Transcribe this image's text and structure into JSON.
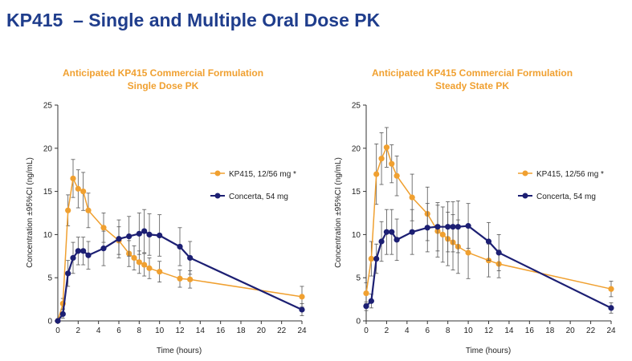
{
  "slide": {
    "title": "KP415  – Single and Multiple Oral Dose PK"
  },
  "colors": {
    "kp415": "#f0a030",
    "concerta": "#1c1f73",
    "title": "#1f3d8c",
    "error_bar": "#555555"
  },
  "chart_data": [
    {
      "type": "line",
      "title": "Anticipated KP415 Commercial Formulation",
      "subtitle": "Single Dose PK",
      "xlabel": "Time (hours)",
      "ylabel": "Concentration ±95%CI (ng/mL)",
      "xlim": [
        0,
        24
      ],
      "ylim": [
        0,
        25
      ],
      "xticks": [
        "0",
        "2",
        "4",
        "6",
        "8",
        "10",
        "12",
        "14",
        "16",
        "18",
        "20",
        "22",
        "24"
      ],
      "yticks": [
        "0",
        "5",
        "10",
        "15",
        "20",
        "25"
      ],
      "legend_position": "right",
      "error_bars": true,
      "series": [
        {
          "name": "KP415, 12/56 mg *",
          "color": "#f0a030",
          "x": [
            0,
            0.5,
            1,
            1.5,
            2,
            2.5,
            3,
            4.5,
            6,
            7,
            7.5,
            8,
            8.5,
            9,
            10,
            12,
            13,
            24
          ],
          "y": [
            0,
            2,
            12.8,
            16.5,
            15.3,
            15,
            12.8,
            10.8,
            9.3,
            7.8,
            7.3,
            6.8,
            6.5,
            6.1,
            5.7,
            4.9,
            4.8,
            2.8
          ],
          "err": [
            0,
            0.6,
            1.8,
            2.2,
            2.2,
            2.2,
            2,
            1.7,
            1.6,
            1.5,
            1.4,
            1.3,
            1.3,
            1.2,
            1.2,
            1,
            1,
            1.2
          ]
        },
        {
          "name": "Concerta, 54 mg",
          "color": "#1c1f73",
          "x": [
            0,
            0.5,
            1,
            1.5,
            2,
            2.5,
            3,
            4.5,
            6,
            7,
            8,
            8.5,
            9,
            10,
            12,
            13,
            24
          ],
          "y": [
            0,
            0.8,
            5.5,
            7.3,
            8.1,
            8.1,
            7.6,
            8.4,
            9.5,
            9.8,
            10.1,
            10.4,
            10,
            9.9,
            8.6,
            7.3,
            1.3
          ],
          "err": [
            0,
            0.5,
            1.5,
            1.8,
            1.6,
            1.6,
            1.6,
            2,
            2.2,
            2.3,
            2.4,
            2.5,
            2.4,
            2.4,
            2.2,
            1.9,
            0.7
          ]
        }
      ]
    },
    {
      "type": "line",
      "title": "Anticipated KP415 Commercial Formulation",
      "subtitle": "Steady State PK",
      "xlabel": "Time (hours)",
      "ylabel": "Concentration ±95%CI (ng/mL)",
      "xlim": [
        0,
        24
      ],
      "ylim": [
        0,
        25
      ],
      "xticks": [
        "0",
        "2",
        "4",
        "6",
        "8",
        "10",
        "12",
        "14",
        "16",
        "18",
        "20",
        "22",
        "24"
      ],
      "yticks": [
        "0",
        "5",
        "10",
        "15",
        "20",
        "25"
      ],
      "legend_position": "right",
      "error_bars": true,
      "series": [
        {
          "name": "KP415, 12/56 mg *",
          "color": "#f0a030",
          "x": [
            0,
            0.5,
            1,
            1.5,
            2,
            2.5,
            3,
            4.5,
            6,
            7,
            7.5,
            8,
            8.5,
            9,
            10,
            12,
            13,
            24
          ],
          "y": [
            3.2,
            7.2,
            17,
            18.8,
            20.1,
            18.2,
            16.8,
            14.3,
            12.4,
            10.4,
            10,
            9.5,
            9.1,
            8.6,
            7.9,
            7,
            6.6,
            3.7
          ],
          "err": [
            1.2,
            2,
            3.5,
            3,
            2.3,
            2.2,
            2.3,
            2.7,
            3.1,
            3,
            3.2,
            3.1,
            3.2,
            3.1,
            3,
            1.9,
            1.6,
            0.9
          ]
        },
        {
          "name": "Concerta, 54 mg",
          "color": "#1c1f73",
          "x": [
            0,
            0.5,
            1,
            1.5,
            2,
            2.5,
            3,
            4.5,
            6,
            7,
            8,
            8.5,
            9,
            10,
            12,
            13,
            24
          ],
          "y": [
            1.7,
            2.3,
            7.2,
            9.2,
            10.3,
            10.3,
            9.4,
            10.3,
            10.8,
            10.9,
            10.9,
            10.9,
            10.9,
            11,
            9.2,
            7.9,
            1.5
          ],
          "err": [
            0.5,
            0.8,
            1.7,
            2.3,
            2.6,
            2.6,
            2.4,
            2.6,
            2.8,
            2.8,
            2.9,
            2.9,
            3,
            2.6,
            2.2,
            2.1,
            0.6
          ]
        }
      ]
    }
  ]
}
